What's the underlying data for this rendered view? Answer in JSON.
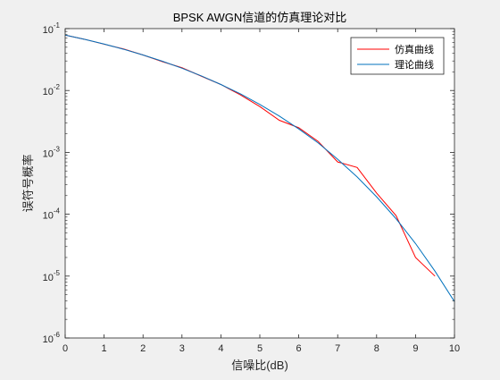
{
  "chart_data": {
    "type": "line",
    "title": "BPSK AWGN信道的仿真理论对比",
    "xlabel": "信噪比(dB)",
    "ylabel": "误符号概率",
    "xlim": [
      0,
      10
    ],
    "ylim": [
      1e-06,
      0.1
    ],
    "yscale": "log",
    "grid": false,
    "legend_position": "top-right",
    "x_ticks": [
      "0",
      "1",
      "2",
      "3",
      "4",
      "5",
      "6",
      "7",
      "8",
      "9",
      "10"
    ],
    "y_ticks": [
      {
        "value": 1e-06,
        "base": "10",
        "exp": "-6"
      },
      {
        "value": 1e-05,
        "base": "10",
        "exp": "-5"
      },
      {
        "value": 0.0001,
        "base": "10",
        "exp": "-4"
      },
      {
        "value": 0.001,
        "base": "10",
        "exp": "-3"
      },
      {
        "value": 0.01,
        "base": "10",
        "exp": "-2"
      },
      {
        "value": 0.1,
        "base": "10",
        "exp": "-1"
      }
    ],
    "series": [
      {
        "name": "仿真曲线",
        "color": "#ff0000",
        "x": [
          0,
          0.5,
          1,
          1.5,
          2,
          2.5,
          3,
          3.5,
          4,
          4.5,
          5,
          5.5,
          6,
          6.5,
          7,
          7.5,
          8,
          8.5,
          9,
          9.5
        ],
        "y": [
          0.0786,
          0.0672,
          0.056,
          0.0469,
          0.0375,
          0.0292,
          0.0233,
          0.017,
          0.0125,
          0.0085,
          0.0055,
          0.0033,
          0.0025,
          0.0015,
          0.0007,
          0.00057,
          0.00022,
          9.5e-05,
          2e-05,
          1e-05
        ]
      },
      {
        "name": "理论曲线",
        "color": "#0072bd",
        "x": [
          0,
          0.5,
          1,
          1.5,
          2,
          2.5,
          3,
          3.5,
          4,
          4.5,
          5,
          5.5,
          6,
          6.5,
          7,
          7.5,
          8,
          8.5,
          9,
          9.5,
          10
        ],
        "y": [
          0.0786,
          0.0671,
          0.0563,
          0.0464,
          0.0375,
          0.0297,
          0.0229,
          0.0172,
          0.0125,
          0.00882,
          0.00595,
          0.00386,
          0.00239,
          0.00142,
          0.000773,
          0.000401,
          0.000191,
          8.46e-05,
          3.36e-05,
          1.2e-05,
          3.87e-06
        ]
      }
    ]
  }
}
